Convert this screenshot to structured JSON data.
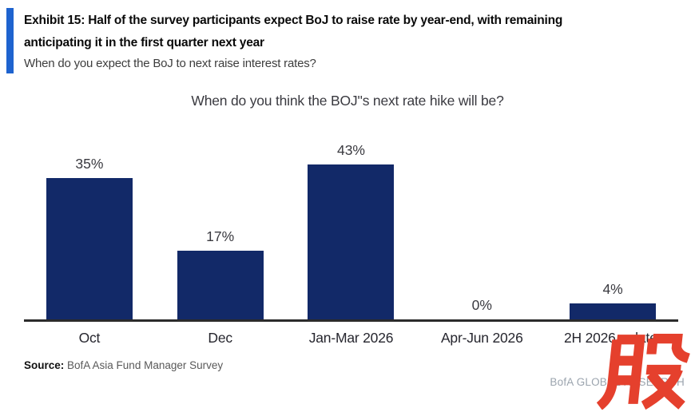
{
  "header": {
    "title_line1": "Exhibit 15: Half of the survey participants expect BoJ to raise rate by year-end, with remaining",
    "title_line2": "anticipating it in the first quarter next year",
    "subtitle": "When do you expect the BoJ to next raise interest rates?",
    "accent_color": "#1e63cf"
  },
  "chart_data": {
    "type": "bar",
    "title": "When do you think the BOJ''s next rate hike will be?",
    "categories": [
      "Oct",
      "Dec",
      "Jan-Mar 2026",
      "Apr-Jun 2026",
      "2H 2026 or later"
    ],
    "values": [
      35,
      17,
      43,
      0,
      4
    ],
    "value_labels": [
      "35%",
      "17%",
      "43%",
      "0%",
      "4%"
    ],
    "xlabel": "",
    "ylabel": "",
    "ylim": [
      0,
      45
    ],
    "grid": false,
    "legend": "none",
    "bar_color": "#122968",
    "axis_color": "#2b2b2b"
  },
  "footer": {
    "source_label": "Source:",
    "source_text": " BofA Asia Fund Manager Survey",
    "brand_text": "BofA GLOBAL RESEARCH"
  },
  "watermark": {
    "character": "股",
    "color": "#e5402d"
  }
}
